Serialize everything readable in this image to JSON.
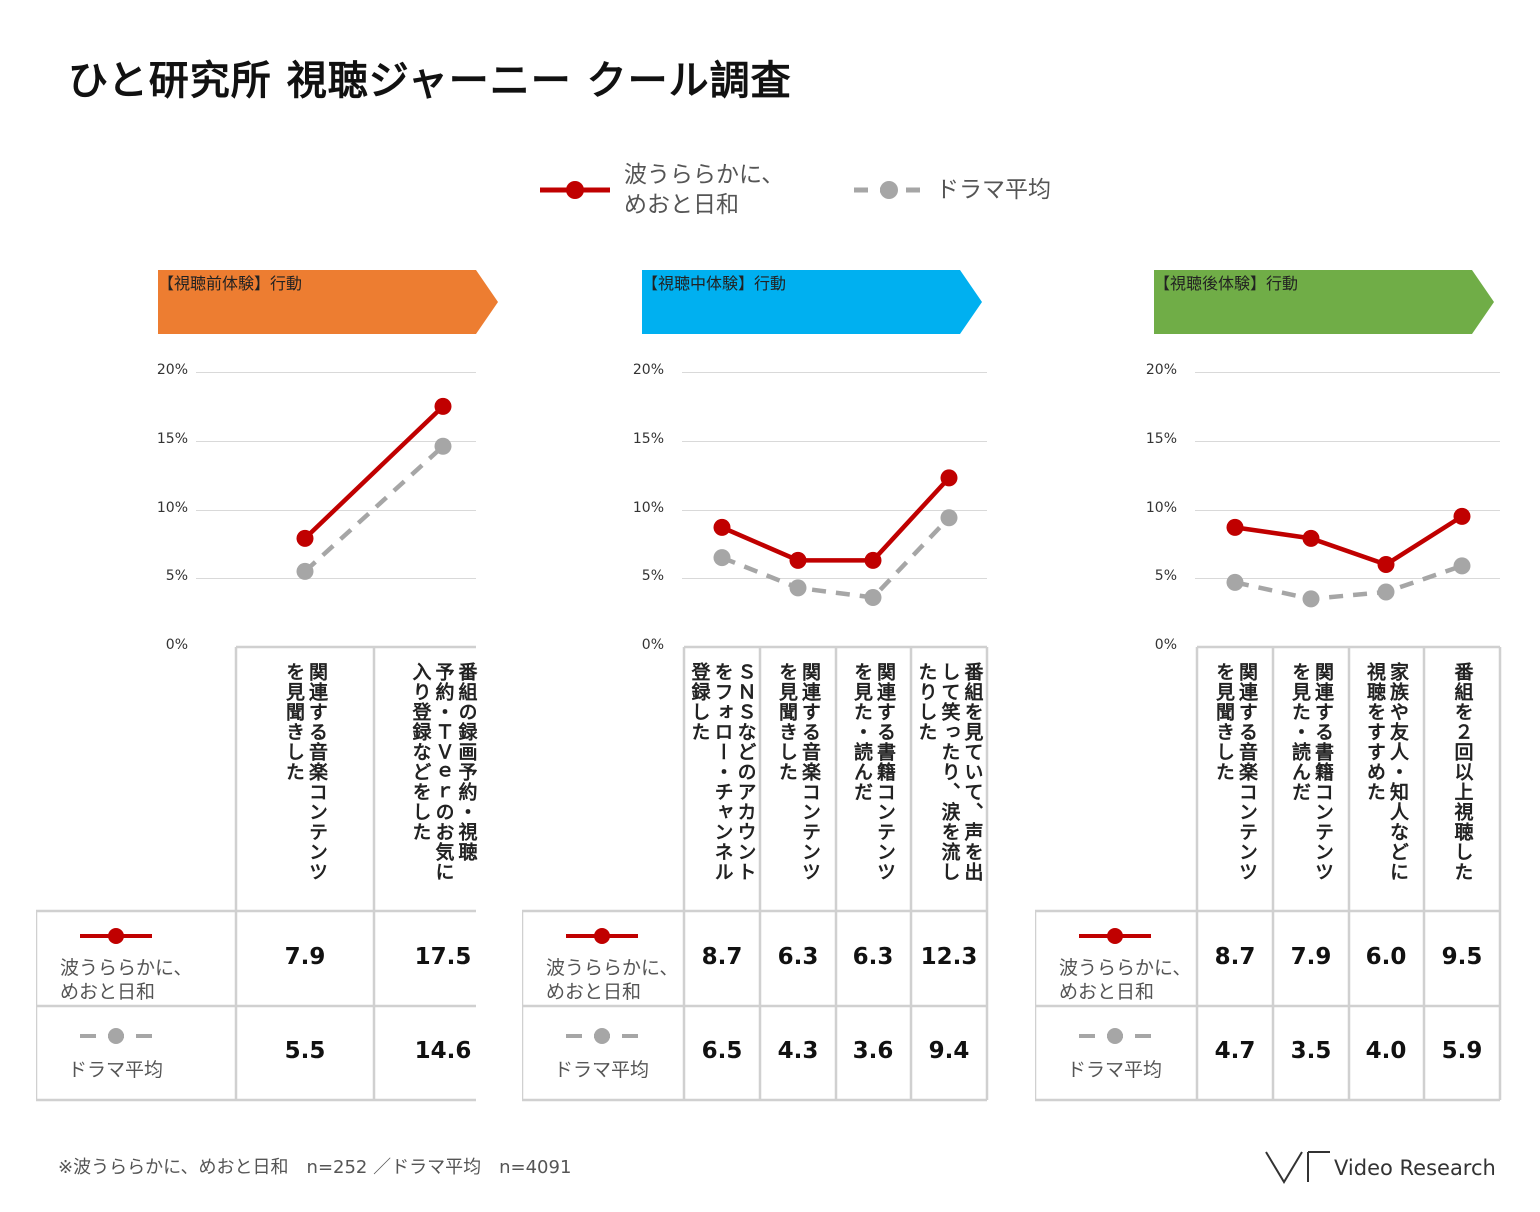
{
  "title": "ひと研究所 視聴ジャーニー クール調査",
  "legend": {
    "series_a": "波うららかに、\nめおと日和",
    "series_b": "ドラマ平均"
  },
  "colors": {
    "series_a": "#c00000",
    "series_b": "#a6a6a6",
    "pre": "#ed7d31",
    "during": "#00b0f0",
    "post": "#70ad47"
  },
  "y_ticks": [
    "20%",
    "15%",
    "10%",
    "5%",
    "0%"
  ],
  "row_labels": {
    "series_a": "波うららかに、\nめおと日和",
    "series_b": "ドラマ平均"
  },
  "chart_data": [
    {
      "type": "line",
      "title": "【視聴前体験】行動",
      "ylim": [
        0,
        20
      ],
      "categories": [
        "関連する音楽コンテンツを見聞きした",
        "番組の録画予約・視聴予約・ＴＶｅｒのお気に入り登録などをした"
      ],
      "category_labels": [
        "関連する音楽コンテンツ\nを見聞きした",
        "番組の録画予約・視聴\n予約・ＴＶｅｒのお気に\n入り登録などをした"
      ],
      "series": [
        {
          "name": "波うららかに、めおと日和",
          "values": [
            7.9,
            17.5
          ],
          "value_labels": [
            "7.9",
            "17.5"
          ]
        },
        {
          "name": "ドラマ平均",
          "values": [
            5.5,
            14.6
          ],
          "value_labels": [
            "5.5",
            "14.6"
          ]
        }
      ]
    },
    {
      "type": "line",
      "title": "【視聴中体験】行動",
      "ylim": [
        0,
        20
      ],
      "categories": [
        "ＳＮＳなどのアカウントをフォロー・チャンネル登録した",
        "関連する音楽コンテンツを見聞きした",
        "関連する書籍コンテンツを見た・読んだ",
        "番組を見ていて、声を出して笑ったり、涙を流したりした"
      ],
      "category_labels": [
        "ＳＮＳなどのアカウント\nをフォロー・チャンネル\n登録した",
        "関連する音楽コンテンツ\nを見聞きした",
        "関連する書籍コンテンツ\nを見た・読んだ",
        "番組を見ていて、声を出\nして笑ったり、涙を流し\nたりした"
      ],
      "series": [
        {
          "name": "波うららかに、めおと日和",
          "values": [
            8.7,
            6.3,
            6.3,
            12.3
          ],
          "value_labels": [
            "8.7",
            "6.3",
            "6.3",
            "12.3"
          ]
        },
        {
          "name": "ドラマ平均",
          "values": [
            6.5,
            4.3,
            3.6,
            9.4
          ],
          "value_labels": [
            "6.5",
            "4.3",
            "3.6",
            "9.4"
          ]
        }
      ]
    },
    {
      "type": "line",
      "title": "【視聴後体験】行動",
      "ylim": [
        0,
        20
      ],
      "categories": [
        "関連する音楽コンテンツを見聞きした",
        "関連する書籍コンテンツを見た・読んだ",
        "家族や友人・知人などに視聴をすすめた",
        "番組を２回以上視聴した"
      ],
      "category_labels": [
        "関連する音楽コンテンツ\nを見聞きした",
        "関連する書籍コンテンツ\nを見た・読んだ",
        "家族や友人・知人などに\n視聴をすすめた",
        "番組を２回以上視聴した"
      ],
      "series": [
        {
          "name": "波うららかに、めおと日和",
          "values": [
            8.7,
            7.9,
            6.0,
            9.5
          ],
          "value_labels": [
            "8.7",
            "7.9",
            "6.0",
            "9.5"
          ]
        },
        {
          "name": "ドラマ平均",
          "values": [
            4.7,
            3.5,
            4.0,
            5.9
          ],
          "value_labels": [
            "4.7",
            "3.5",
            "4.0",
            "5.9"
          ]
        }
      ]
    }
  ],
  "footnote": "※波うららかに、めおと日和　n=252 ／ドラマ平均　n=4091",
  "brand": "Video Research"
}
